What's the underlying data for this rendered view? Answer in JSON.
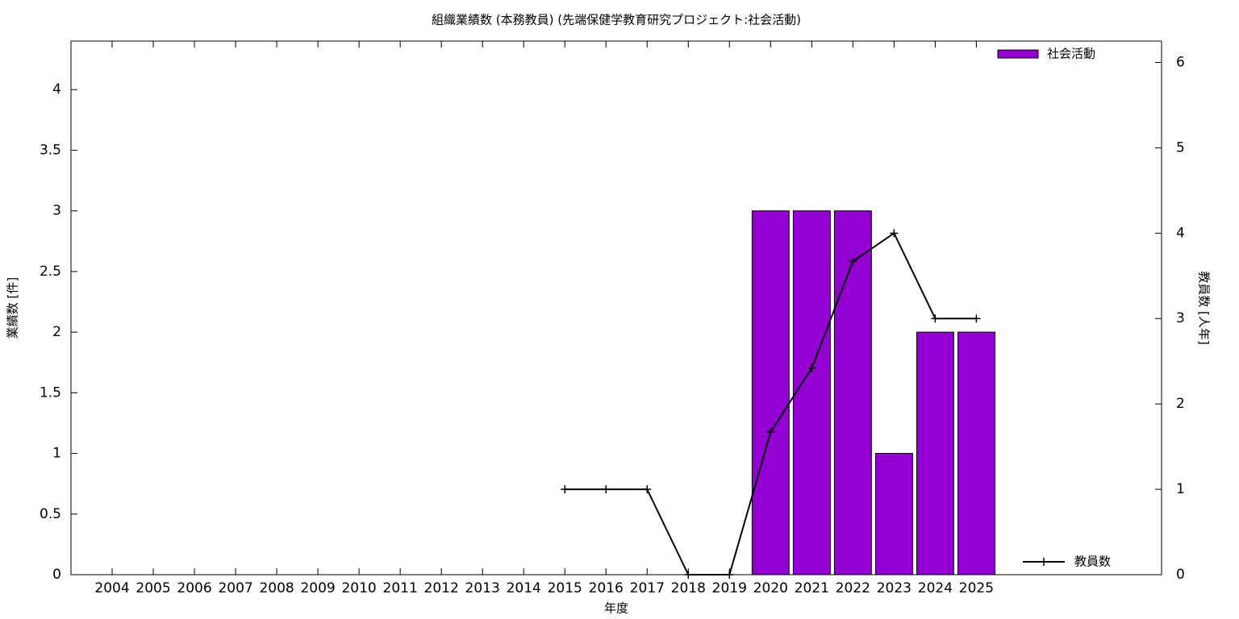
{
  "chart_data": {
    "type": "bar",
    "title": "組織業績数 (本務教員) (先端保健学教育研究プロジェクト:社会活動)",
    "x_label": "年度",
    "y_label": "業績数 [件]",
    "y2_label": "教員数 [人年]",
    "categories": [
      "2004",
      "2005",
      "2006",
      "2007",
      "2008",
      "2009",
      "2010",
      "2011",
      "2012",
      "2013",
      "2014",
      "2015",
      "2016",
      "2017",
      "2018",
      "2019",
      "2020",
      "2021",
      "2022",
      "2023",
      "2024",
      "2025"
    ],
    "series": [
      {
        "name": "社会活動",
        "type": "bar",
        "color": "#9400d3",
        "legend": "top right",
        "values": [
          0,
          0,
          0,
          0,
          0,
          0,
          0,
          0,
          0,
          0,
          0,
          0,
          0,
          0,
          0,
          0,
          3,
          3,
          3,
          1,
          2,
          2
        ]
      },
      {
        "name": "教員数",
        "type": "line",
        "color": "#000000",
        "axis": "y2",
        "legend": "bottom right",
        "values": [
          null,
          null,
          null,
          null,
          null,
          null,
          null,
          null,
          null,
          null,
          null,
          1,
          1,
          1,
          0,
          0,
          1.67,
          2.42,
          3.67,
          4,
          3,
          3
        ]
      }
    ],
    "ylim": [
      0,
      4.4
    ],
    "yticks": [
      0,
      0.5,
      1,
      1.5,
      2,
      2.5,
      3,
      3.5,
      4
    ],
    "y2lim": [
      0,
      6.25
    ],
    "y2ticks": [
      0,
      1,
      2,
      3,
      4,
      5,
      6
    ],
    "grid": false
  }
}
